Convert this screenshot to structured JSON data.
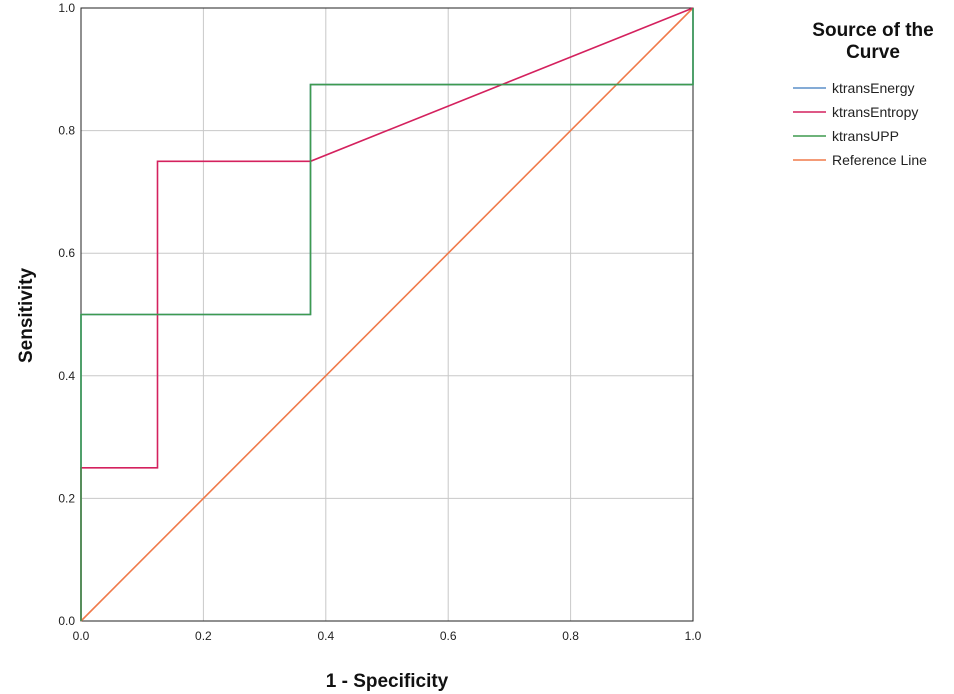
{
  "chart_data": {
    "type": "line",
    "xlabel": "1 - Specificity",
    "ylabel": "Sensitivity",
    "xlim": [
      0,
      1
    ],
    "ylim": [
      0,
      1
    ],
    "xticks": [
      "0.0",
      "0.2",
      "0.4",
      "0.6",
      "0.8",
      "1.0"
    ],
    "yticks": [
      "0.0",
      "0.2",
      "0.4",
      "0.6",
      "0.8",
      "1.0"
    ],
    "grid": true,
    "legend": {
      "title_lines": [
        "Source of the",
        "Curve"
      ],
      "position": "right"
    },
    "series": [
      {
        "name": "ktransEnergy",
        "color": "#5b8fc9",
        "x": [
          0,
          0,
          0.375,
          0.375,
          1,
          1
        ],
        "y": [
          0,
          0.5,
          0.5,
          0.875,
          0.875,
          1
        ]
      },
      {
        "name": "ktransEntropy",
        "color": "#d4215e",
        "x": [
          0,
          0,
          0.125,
          0.125,
          0.375,
          1
        ],
        "y": [
          0,
          0.25,
          0.25,
          0.75,
          0.75,
          1
        ]
      },
      {
        "name": "ktransUPP",
        "color": "#3e9a4f",
        "x": [
          0,
          0,
          0.375,
          0.375,
          1,
          1
        ],
        "y": [
          0,
          0.5,
          0.5,
          0.875,
          0.875,
          1
        ]
      },
      {
        "name": "Reference Line",
        "color": "#f07a4a",
        "x": [
          0,
          1
        ],
        "y": [
          0,
          1
        ]
      }
    ]
  }
}
